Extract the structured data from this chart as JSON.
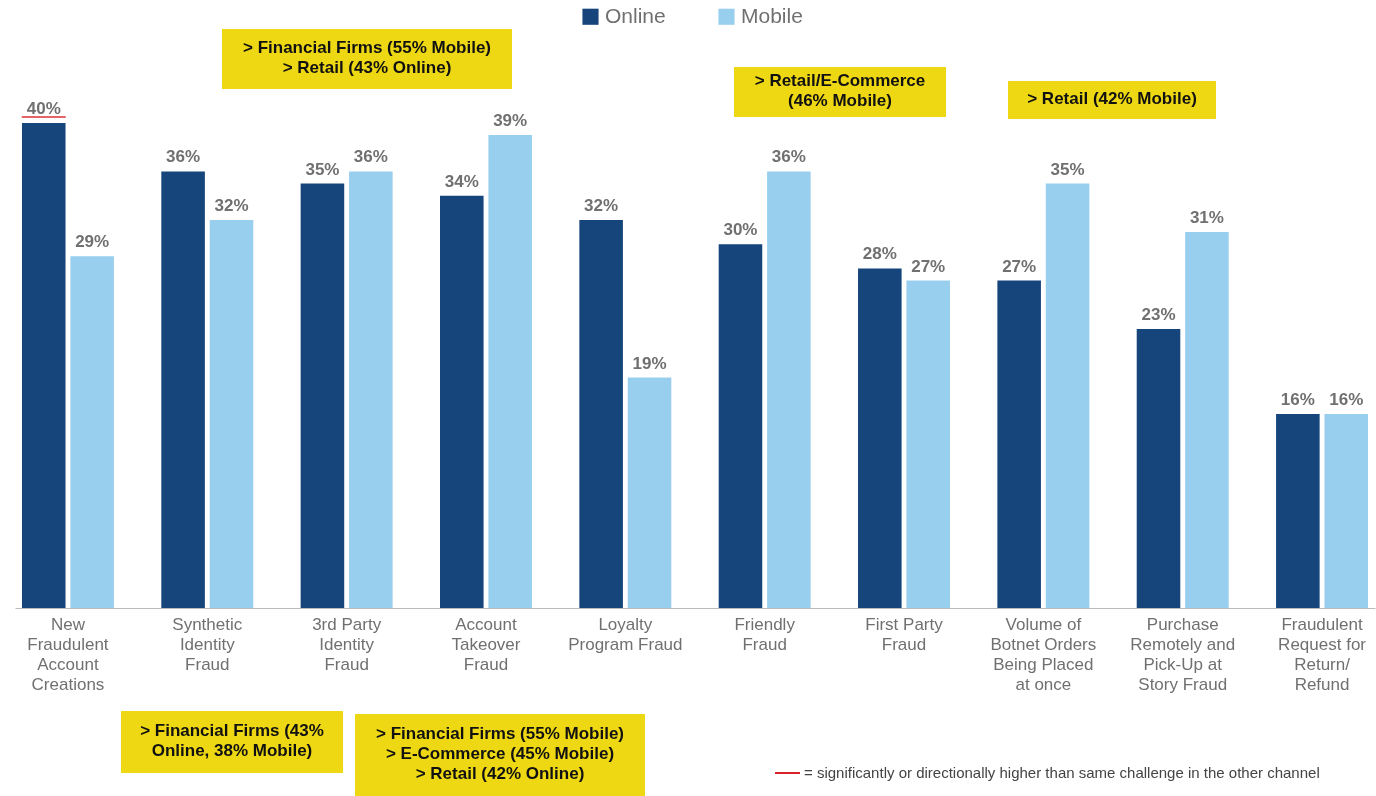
{
  "chart_data": {
    "type": "bar",
    "categories": [
      "New Fraudulent Account Creations",
      "Synthetic Identity Fraud",
      "3rd Party Identity Fraud",
      "Account Takeover Fraud",
      "Loyalty Program Fraud",
      "Friendly Fraud",
      "First Party Fraud",
      "Volume of Botnet Orders Being Placed at once",
      "Purchase Remotely and Pick-Up at Story Fraud",
      "Fraudulent Request for Return/ Refund"
    ],
    "series": [
      {
        "name": "Online",
        "color": "#15457a",
        "values": [
          40,
          36,
          35,
          34,
          32,
          30,
          28,
          27,
          23,
          16
        ],
        "value_labels": [
          "40%",
          "36%",
          "35%",
          "34%",
          "32%",
          "30%",
          "28%",
          "27%",
          "23%",
          "16%"
        ]
      },
      {
        "name": "Mobile",
        "color": "#99cfee",
        "values": [
          29,
          32,
          36,
          39,
          19,
          36,
          27,
          35,
          31,
          16
        ],
        "value_labels": [
          "29%",
          "32%",
          "36%",
          "39%",
          "19%",
          "36%",
          "27%",
          "35%",
          "31%",
          "16%"
        ]
      }
    ],
    "annotations": [
      "> Financial Firms (55% Mobile)\n> Retail (43% Online)",
      "> Retail/E-Commerce\n(46% Mobile)",
      "> Retail (42% Mobile)",
      "> Financial Firms (43%\nOnline, 38% Mobile)",
      "> Financial Firms (55% Mobile)\n> E-Commerce (45% Mobile)\n> Retail (42% Online)",
      "= significantly or directionally higher than same challenge in the other channel"
    ],
    "legend": "top",
    "grid": false
  }
}
